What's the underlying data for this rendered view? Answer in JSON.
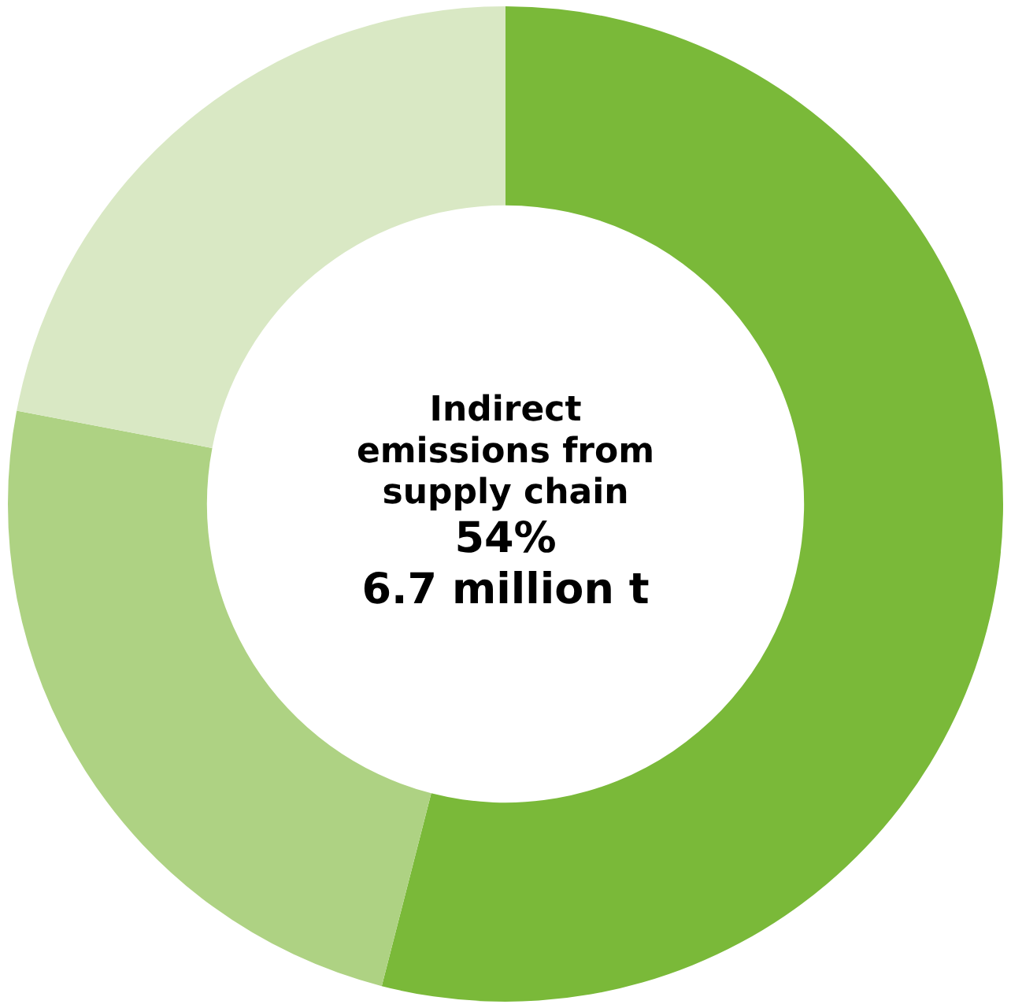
{
  "chart_data": {
    "type": "donut",
    "categories": [
      "Indirect emissions from supply chain",
      null,
      null
    ],
    "values": [
      54,
      24,
      22
    ],
    "colors": [
      "#7ab939",
      "#aed283",
      "#d9e8c4"
    ],
    "value_labels": [
      "54%",
      null,
      null
    ],
    "annotations": [
      "6.7 million t"
    ],
    "legend": false
  }
}
